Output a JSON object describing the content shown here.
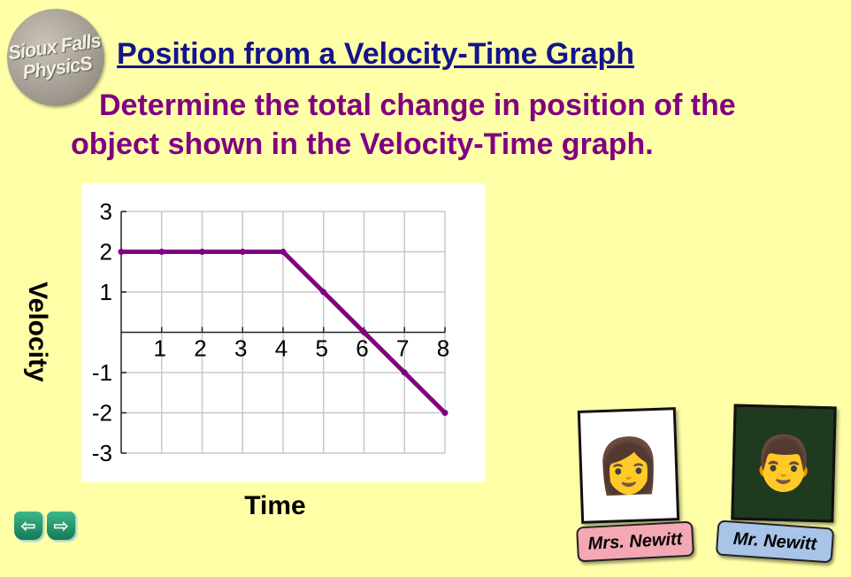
{
  "logo": {
    "line1": "Sioux Falls",
    "line2": "PhysicS"
  },
  "title": "Position from a Velocity-Time Graph",
  "subtitle": {
    "line1": "Determine the total change in position of the",
    "line2": "object shown in the Velocity-Time graph."
  },
  "nav": {
    "back_icon": "left-arrow",
    "forward_icon": "right-arrow"
  },
  "people": [
    {
      "name": "Mrs. Newitt",
      "tag_color": "#f4a8b4"
    },
    {
      "name": "Mr. Newitt",
      "tag_color": "#a8c4e8"
    }
  ],
  "chart_data": {
    "type": "line",
    "xlabel": "Time",
    "ylabel": "Velocity",
    "xlim": [
      0,
      8
    ],
    "ylim": [
      -3,
      3
    ],
    "x_ticks": [
      1,
      2,
      3,
      4,
      5,
      6,
      7,
      8
    ],
    "y_ticks": [
      3,
      2,
      1,
      -1,
      -2,
      -3
    ],
    "grid": true,
    "line_color": "#800080",
    "x": [
      0,
      1,
      2,
      3,
      4,
      5,
      6,
      7,
      8
    ],
    "y": [
      2,
      2,
      2,
      2,
      2,
      1,
      0,
      -1,
      -2
    ]
  }
}
